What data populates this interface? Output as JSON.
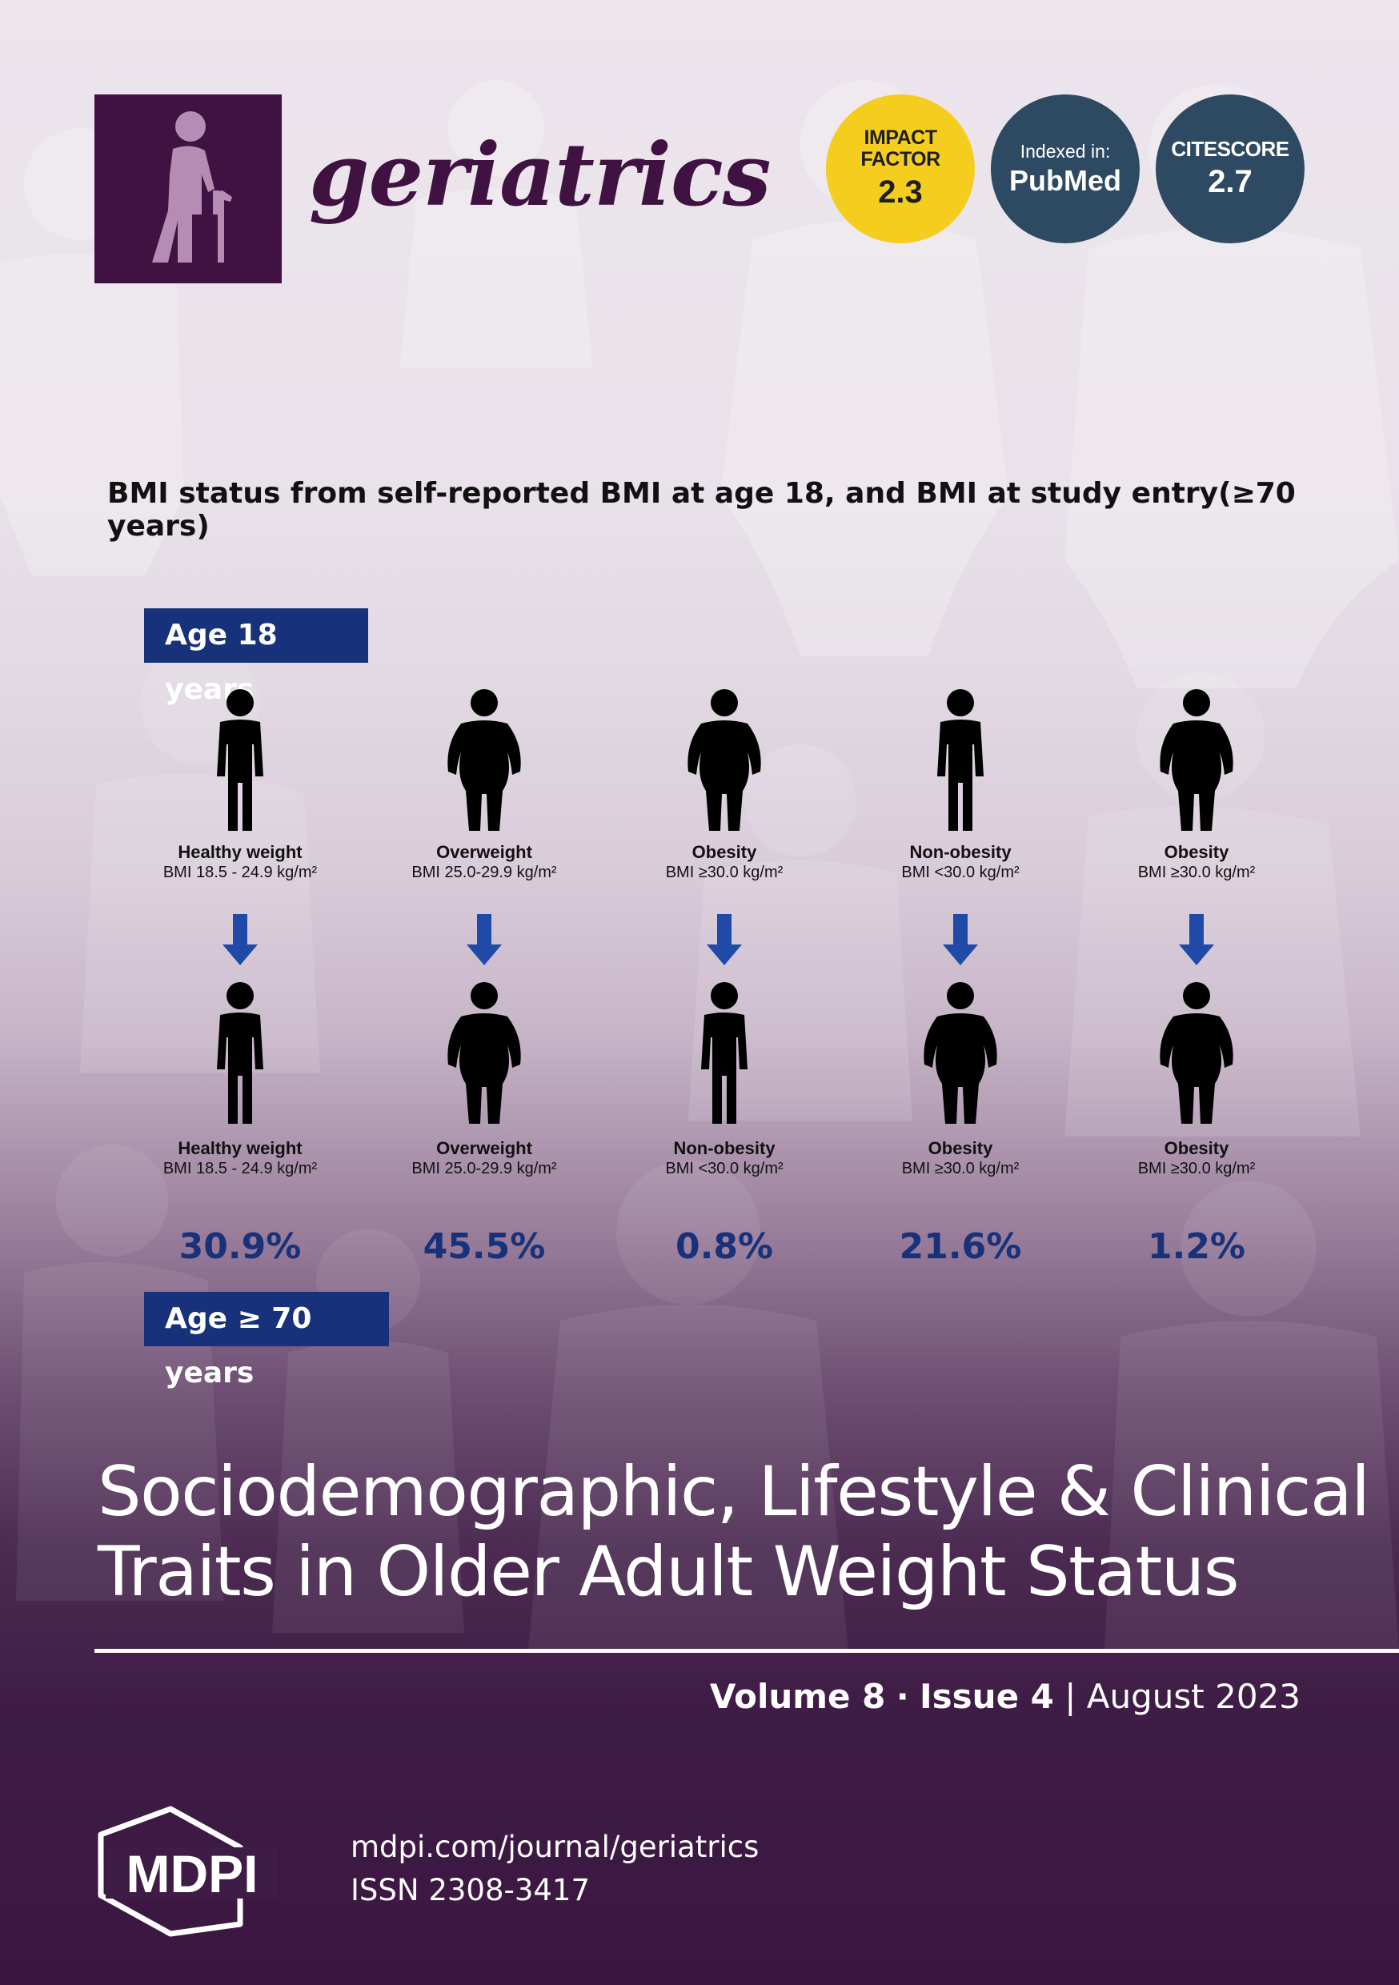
{
  "journal": {
    "name": "geriatrics"
  },
  "badges": {
    "impact_factor": {
      "label_line1": "IMPACT",
      "label_line2": "FACTOR",
      "value": "2.3"
    },
    "indexed": {
      "label": "Indexed in:",
      "value": "PubMed"
    },
    "citescore": {
      "label": "CITESCORE",
      "value": "2.7"
    }
  },
  "colors": {
    "brand_purple": "#3f1241",
    "impact_yellow": "#f5cd1f",
    "badge_navy": "#2e4a62",
    "label_blue": "#17317a"
  },
  "figure": {
    "title": "BMI status from self-reported BMI at age 18, and BMI at study entry(≥70 years)",
    "age_top_label": "Age 18 years",
    "age_bottom_label": "Age ≥ 70 years",
    "columns": [
      {
        "top_name": "Healthy weight",
        "top_bmi": "BMI 18.5 - 24.9 kg/m²",
        "bottom_name": "Healthy weight",
        "bottom_bmi": "BMI 18.5 - 24.9 kg/m²",
        "percent": "30.9%"
      },
      {
        "top_name": "Overweight",
        "top_bmi": "BMI 25.0-29.9 kg/m²",
        "bottom_name": "Overweight",
        "bottom_bmi": "BMI 25.0-29.9 kg/m²",
        "percent": "45.5%"
      },
      {
        "top_name": "Obesity",
        "top_bmi": "BMI ≥30.0 kg/m²",
        "bottom_name": "Non-obesity",
        "bottom_bmi": "BMI <30.0 kg/m²",
        "percent": "0.8%"
      },
      {
        "top_name": "Non-obesity",
        "top_bmi": "BMI <30.0 kg/m²",
        "bottom_name": "Obesity",
        "bottom_bmi": "BMI ≥30.0 kg/m²",
        "percent": "21.6%"
      },
      {
        "top_name": "Obesity",
        "top_bmi": "BMI ≥30.0 kg/m²",
        "bottom_name": "Obesity",
        "bottom_bmi": "BMI ≥30.0 kg/m²",
        "percent": "1.2%"
      }
    ]
  },
  "article": {
    "title_line1": "Sociodemographic, Lifestyle & Clinical",
    "title_line2": "Traits in Older Adult Weight Status"
  },
  "issue": {
    "volume": "Volume 8",
    "separator": "·",
    "issue": "Issue 4",
    "bar": "|",
    "date": "August 2023"
  },
  "publisher": {
    "logo_text": "MDPI",
    "url": "mdpi.com/journal/geriatrics",
    "issn": "ISSN 2308-3417"
  }
}
